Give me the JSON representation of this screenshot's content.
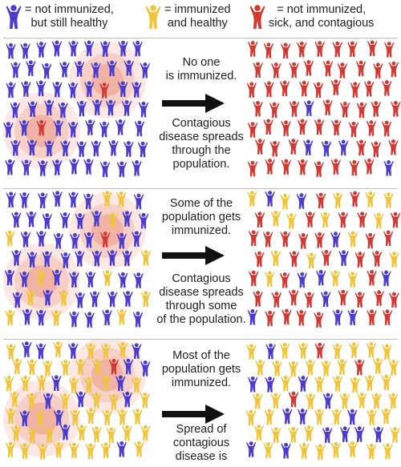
{
  "colors": {
    "blue": "#4b3ccc",
    "yellow": "#efc43e",
    "red": "#cf3a34",
    "divider": "#bdbdbd"
  },
  "legend": [
    {
      "icon": "blue-person-icon",
      "color": "blue",
      "text": "= not immunized,\nbut still healthy"
    },
    {
      "icon": "yellow-person-icon",
      "color": "yellow",
      "text": "= immunized\nand healthy"
    },
    {
      "icon": "red-person-icon",
      "color": "red",
      "text": "= not immunized,\nsick, and contagious"
    }
  ],
  "panels": [
    {
      "top_text": "No one\nis immunized.",
      "bottom_text": "Contagious\ndisease spreads\nthrough the\npopulation.",
      "before": {
        "immunized_share": 0.0,
        "sick_share": 0.05
      },
      "after": {
        "immunized_share": 0.0,
        "sick_share": 0.9
      }
    },
    {
      "top_text": "Some of the\npopulation gets\nimmunized.",
      "bottom_text": "Contagious\ndisease spreads\nthrough some\nof the population.",
      "before": {
        "immunized_share": 0.15,
        "sick_share": 0.05
      },
      "after": {
        "immunized_share": 0.15,
        "sick_share": 0.6
      }
    },
    {
      "top_text": "Most of the\npopulation gets\nimmunized.",
      "bottom_text": "Spread of\ncontagious\ndisease is",
      "before": {
        "immunized_share": 0.8,
        "sick_share": 0.03
      },
      "after": {
        "immunized_share": 0.8,
        "sick_share": 0.05
      }
    }
  ]
}
